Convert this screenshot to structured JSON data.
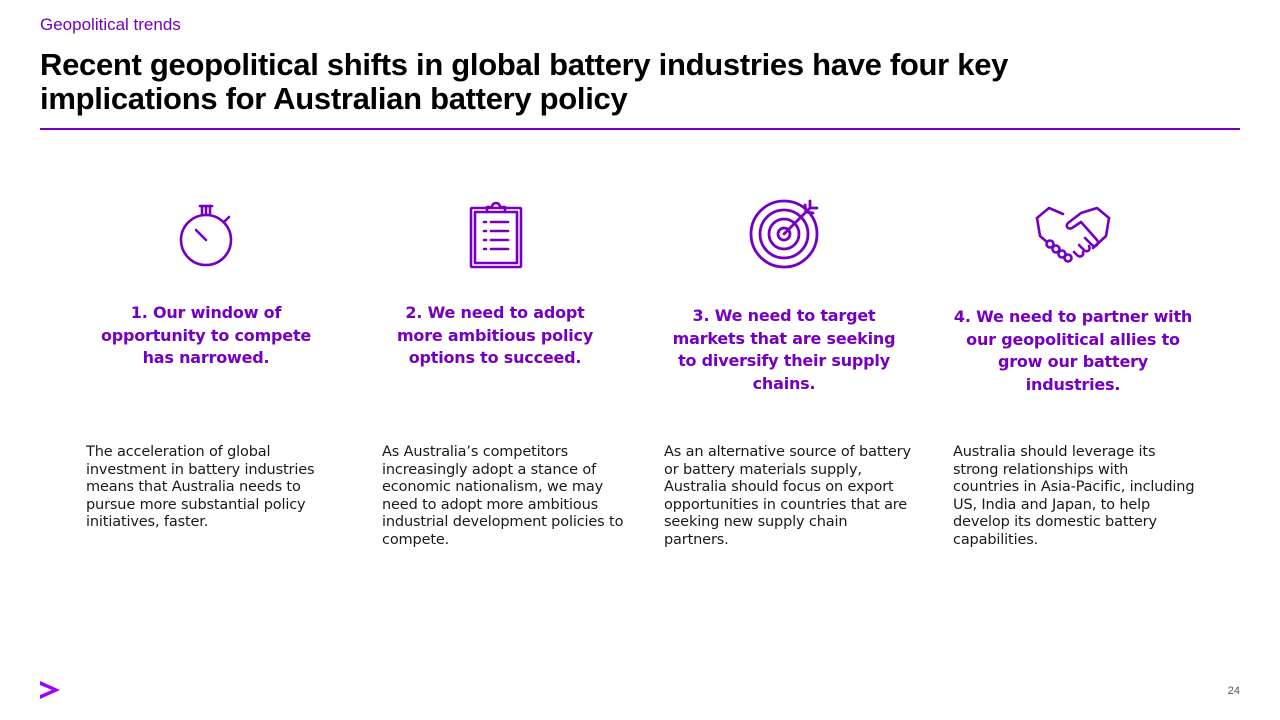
{
  "header": {
    "eyebrow": "Geopolitical trends",
    "title": "Recent geopolitical shifts in global battery industries have four key implications for Australian battery policy"
  },
  "colors": {
    "accent": "#7500c0",
    "text": "#000000"
  },
  "implications": [
    {
      "icon": "stopwatch-icon",
      "heading": "1. Our window of opportunity to compete has narrowed.",
      "body": "The acceleration of global investment in battery industries means that Australia needs to pursue more substantial policy initiatives, faster."
    },
    {
      "icon": "clipboard-icon",
      "heading": "2. We need to adopt more ambitious policy options to succeed.",
      "body": "As Australia’s competitors increasingly adopt a stance of economic nationalism, we may need to adopt more ambitious industrial development policies to compete."
    },
    {
      "icon": "target-icon",
      "heading": "3. We need to target markets that are seeking to diversify their supply chains.",
      "body": "As an alternative source of battery or battery materials supply, Australia should focus on export opportunities in countries that are seeking new supply chain partners."
    },
    {
      "icon": "handshake-icon",
      "heading": "4. We need to partner with our geopolitical allies to grow our battery industries.",
      "body": "Australia should leverage its strong relationships with countries in Asia-Pacific, including US, India and Japan, to help develop its domestic battery capabilities."
    }
  ],
  "footer": {
    "logo": "accenture-chevron-icon",
    "page_number": "24"
  }
}
